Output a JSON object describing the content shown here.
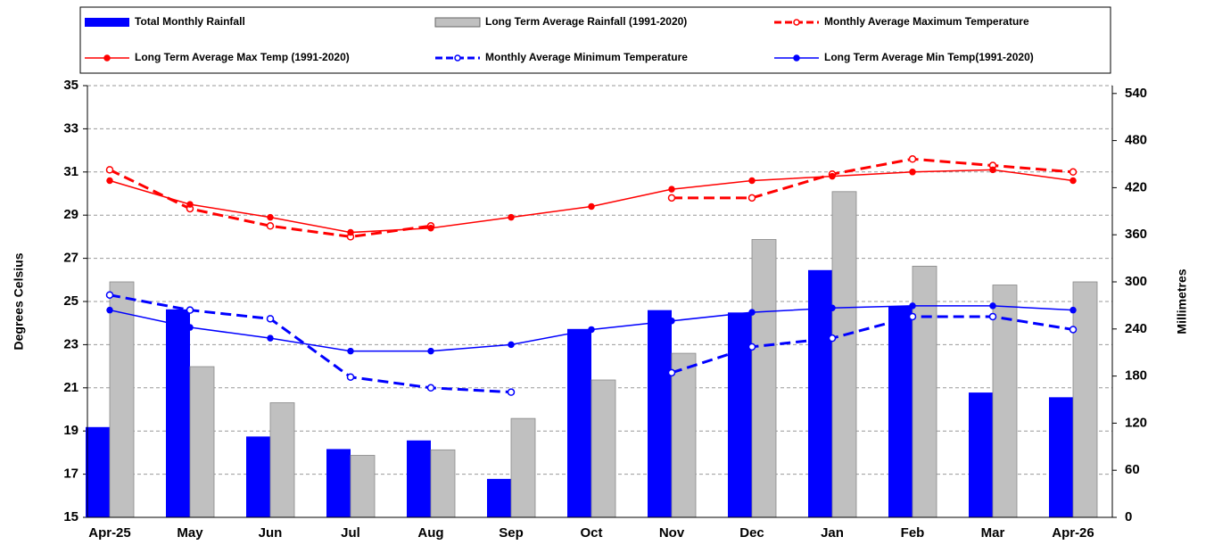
{
  "chart_data": {
    "type": "bar",
    "categories": [
      "Apr-25",
      "May",
      "Jun",
      "Jul",
      "Aug",
      "Sep",
      "Oct",
      "Nov",
      "Dec",
      "Jan",
      "Feb",
      "Mar",
      "Apr-26"
    ],
    "ylabel": "Degrees Celsius",
    "y2label": "Millimetres",
    "ylim": [
      15,
      35
    ],
    "yticks": [
      15,
      17,
      19,
      21,
      23,
      25,
      27,
      29,
      31,
      33,
      35
    ],
    "y2lim": [
      0,
      550
    ],
    "y2ticks": [
      0,
      60,
      120,
      180,
      240,
      300,
      360,
      420,
      480,
      540
    ],
    "grid": true,
    "series": [
      {
        "name": "Total Monthly Rainfall",
        "type": "bar",
        "axis": "y2",
        "color": "#0000ff",
        "values": [
          115,
          265,
          103,
          87,
          98,
          49,
          240,
          264,
          261,
          315,
          269,
          159,
          153
        ]
      },
      {
        "name": "Long Term Average Rainfall (1991-2020)",
        "type": "bar",
        "axis": "y2",
        "color": "#c0c0c0",
        "values": [
          300,
          192,
          146,
          79,
          86,
          126,
          175,
          209,
          354,
          415,
          320,
          296,
          300
        ]
      },
      {
        "name": "Monthly Average Maximum Temperature",
        "type": "line",
        "dash": true,
        "color": "#ff0000",
        "values": [
          31.1,
          29.3,
          28.5,
          28.0,
          28.5,
          null,
          null,
          29.8,
          29.8,
          30.9,
          31.6,
          31.3,
          31.0
        ]
      },
      {
        "name": "Long Term Average Max Temp (1991-2020)",
        "type": "line",
        "dash": false,
        "color": "#ff0000",
        "values": [
          30.6,
          29.5,
          28.9,
          28.2,
          28.4,
          28.9,
          29.4,
          30.2,
          30.6,
          30.8,
          31.0,
          31.1,
          30.6
        ]
      },
      {
        "name": "Monthly Average Minimum Temperature",
        "type": "line",
        "dash": true,
        "color": "#0000ff",
        "values": [
          25.3,
          24.6,
          24.2,
          21.5,
          21.0,
          20.8,
          null,
          21.7,
          22.9,
          23.3,
          24.3,
          24.3,
          23.7
        ]
      },
      {
        "name": "Long Term Average Min Temp(1991-2020)",
        "type": "line",
        "dash": false,
        "color": "#0000ff",
        "values": [
          24.6,
          23.8,
          23.3,
          22.7,
          22.7,
          23.0,
          23.7,
          24.1,
          24.5,
          24.7,
          24.8,
          24.8,
          24.6
        ]
      }
    ]
  }
}
